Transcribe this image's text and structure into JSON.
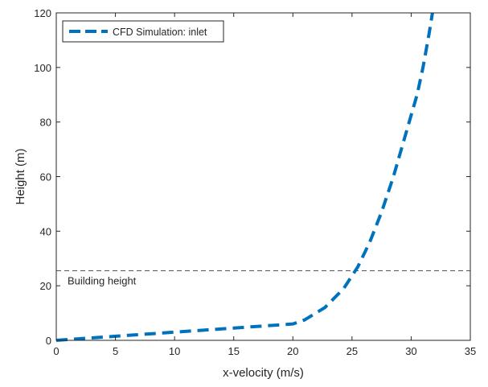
{
  "chart_data": {
    "type": "line",
    "title": "",
    "xlabel": "x-velocity (m/s)",
    "ylabel": "Height (m)",
    "xlim": [
      0,
      35
    ],
    "ylim": [
      0,
      120
    ],
    "xticks": [
      0,
      5,
      10,
      15,
      20,
      25,
      30,
      35
    ],
    "yticks": [
      0,
      20,
      40,
      60,
      80,
      100,
      120
    ],
    "grid": false,
    "legend_position": "top-left",
    "series": [
      {
        "name": "CFD Simulation: inlet",
        "color": "#0072BD",
        "line_style": "dashed",
        "x": [
          0,
          5,
          10,
          15,
          20,
          21,
          22.7,
          24.3,
          25.5,
          26.5,
          27.5,
          28.5,
          29.5,
          30.5,
          31.0,
          31.5,
          31.8
        ],
        "y": [
          0,
          1.5,
          3,
          4.5,
          6,
          7.5,
          12,
          19,
          27,
          36,
          47,
          60,
          75,
          90,
          100,
          112,
          120
        ]
      }
    ],
    "reference_lines": [
      {
        "orientation": "horizontal",
        "y": 25.5,
        "color": "#555555",
        "line_style": "dashed",
        "label": "Building height"
      }
    ]
  }
}
